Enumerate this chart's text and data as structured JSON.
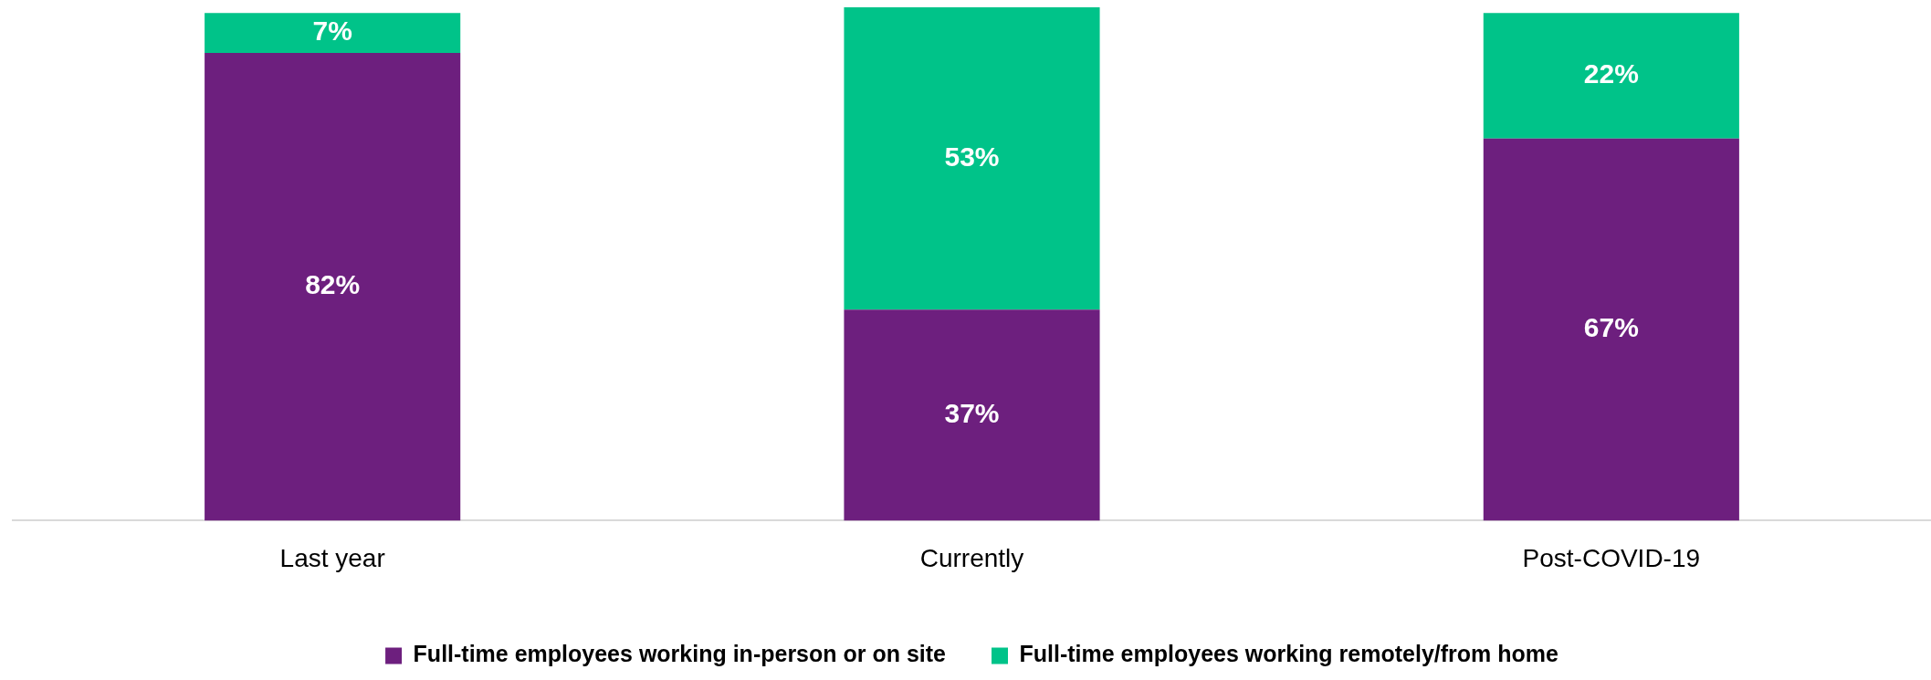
{
  "chart_data": {
    "type": "bar",
    "stacked": true,
    "categories": [
      "Last year",
      "Currently",
      "Post-COVID-19"
    ],
    "series": [
      {
        "name": "Full-time employees working in-person or on site",
        "color": "#6d1f7e",
        "values": [
          82,
          37,
          67
        ],
        "value_labels": [
          "82%",
          "37%",
          "67%"
        ]
      },
      {
        "name": "Full-time employees working remotely/from home",
        "color": "#00c389",
        "values": [
          7,
          53,
          22
        ],
        "value_labels": [
          "7%",
          "53%",
          "22%"
        ]
      }
    ],
    "legend": "bottom",
    "grid": false,
    "tick_labels": "x"
  }
}
